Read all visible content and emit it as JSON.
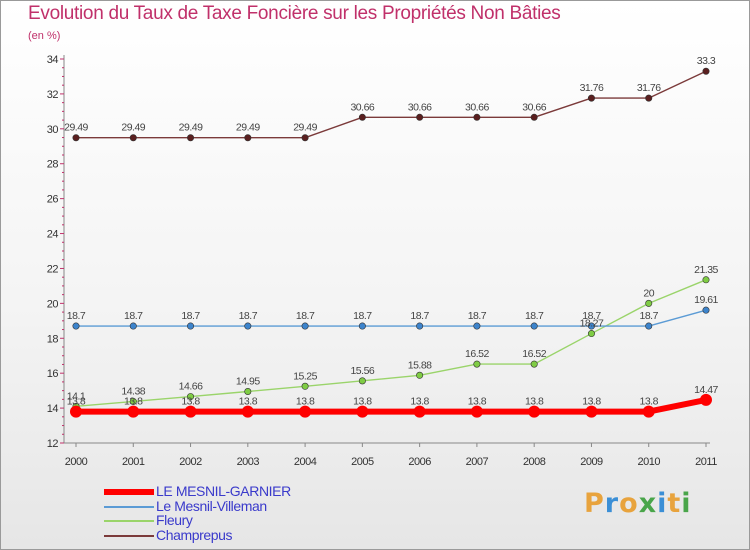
{
  "header": {
    "title": "Evolution du Taux de Taxe Foncière sur les Propriétés Non Bâties",
    "unit": "(en %)"
  },
  "logo": {
    "text": "Proxiti",
    "colors": [
      "#e8a33d",
      "#3b8fd6",
      "#e8a33d",
      "#49a54a",
      "#3b8fd6",
      "#e8a33d",
      "#49a54a"
    ]
  },
  "chart_data": {
    "type": "line",
    "title": "Evolution du Taux de Taxe Foncière sur les Propriétés Non Bâties",
    "ylabel": "(en %)",
    "xlabel": "",
    "x": [
      "2000",
      "2001",
      "2002",
      "2003",
      "2004",
      "2005",
      "2006",
      "2007",
      "2008",
      "2009",
      "2010",
      "2011"
    ],
    "ylim": [
      12,
      34
    ],
    "yticks": [
      12,
      14,
      16,
      18,
      20,
      22,
      24,
      26,
      28,
      30,
      32,
      34
    ],
    "grid": false,
    "legend_position": "bottom-left",
    "series": [
      {
        "name": "LE MESNIL-GARNIER",
        "color": "#ff0000",
        "values": [
          13.8,
          13.8,
          13.8,
          13.8,
          13.8,
          13.8,
          13.8,
          13.8,
          13.8,
          13.8,
          13.8,
          14.47
        ],
        "labels": [
          "13.8",
          "13.8",
          "13.8",
          "13.8",
          "13.8",
          "13.8",
          "13.8",
          "13.8",
          "13.8",
          "13.8",
          "13.8",
          "14.47"
        ]
      },
      {
        "name": "Le Mesnil-Villeman",
        "color": "#5b9bd5",
        "values": [
          18.7,
          18.7,
          18.7,
          18.7,
          18.7,
          18.7,
          18.7,
          18.7,
          18.7,
          18.7,
          18.7,
          19.61
        ],
        "labels": [
          "18.7",
          "18.7",
          "18.7",
          "18.7",
          "18.7",
          "18.7",
          "18.7",
          "18.7",
          "18.7",
          "18.7",
          "18.7",
          "19.61"
        ]
      },
      {
        "name": "Fleury",
        "color": "#9ad46a",
        "values": [
          14.1,
          14.38,
          14.66,
          14.95,
          15.25,
          15.56,
          15.88,
          16.52,
          16.52,
          18.27,
          20,
          21.35
        ],
        "labels": [
          "14.1",
          "14.38",
          "14.66",
          "14.95",
          "15.25",
          "15.56",
          "15.88",
          "16.52",
          "16.52",
          "18.27",
          "20",
          "21.35"
        ]
      },
      {
        "name": "Champrepus",
        "color": "#7b3a3a",
        "values": [
          29.49,
          29.49,
          29.49,
          29.49,
          29.49,
          30.66,
          30.66,
          30.66,
          30.66,
          31.76,
          31.76,
          33.3
        ],
        "labels": [
          "29.49",
          "29.49",
          "29.49",
          "29.49",
          "29.49",
          "30.66",
          "30.66",
          "30.66",
          "30.66",
          "31.76",
          "31.76",
          "33.3"
        ]
      }
    ]
  }
}
